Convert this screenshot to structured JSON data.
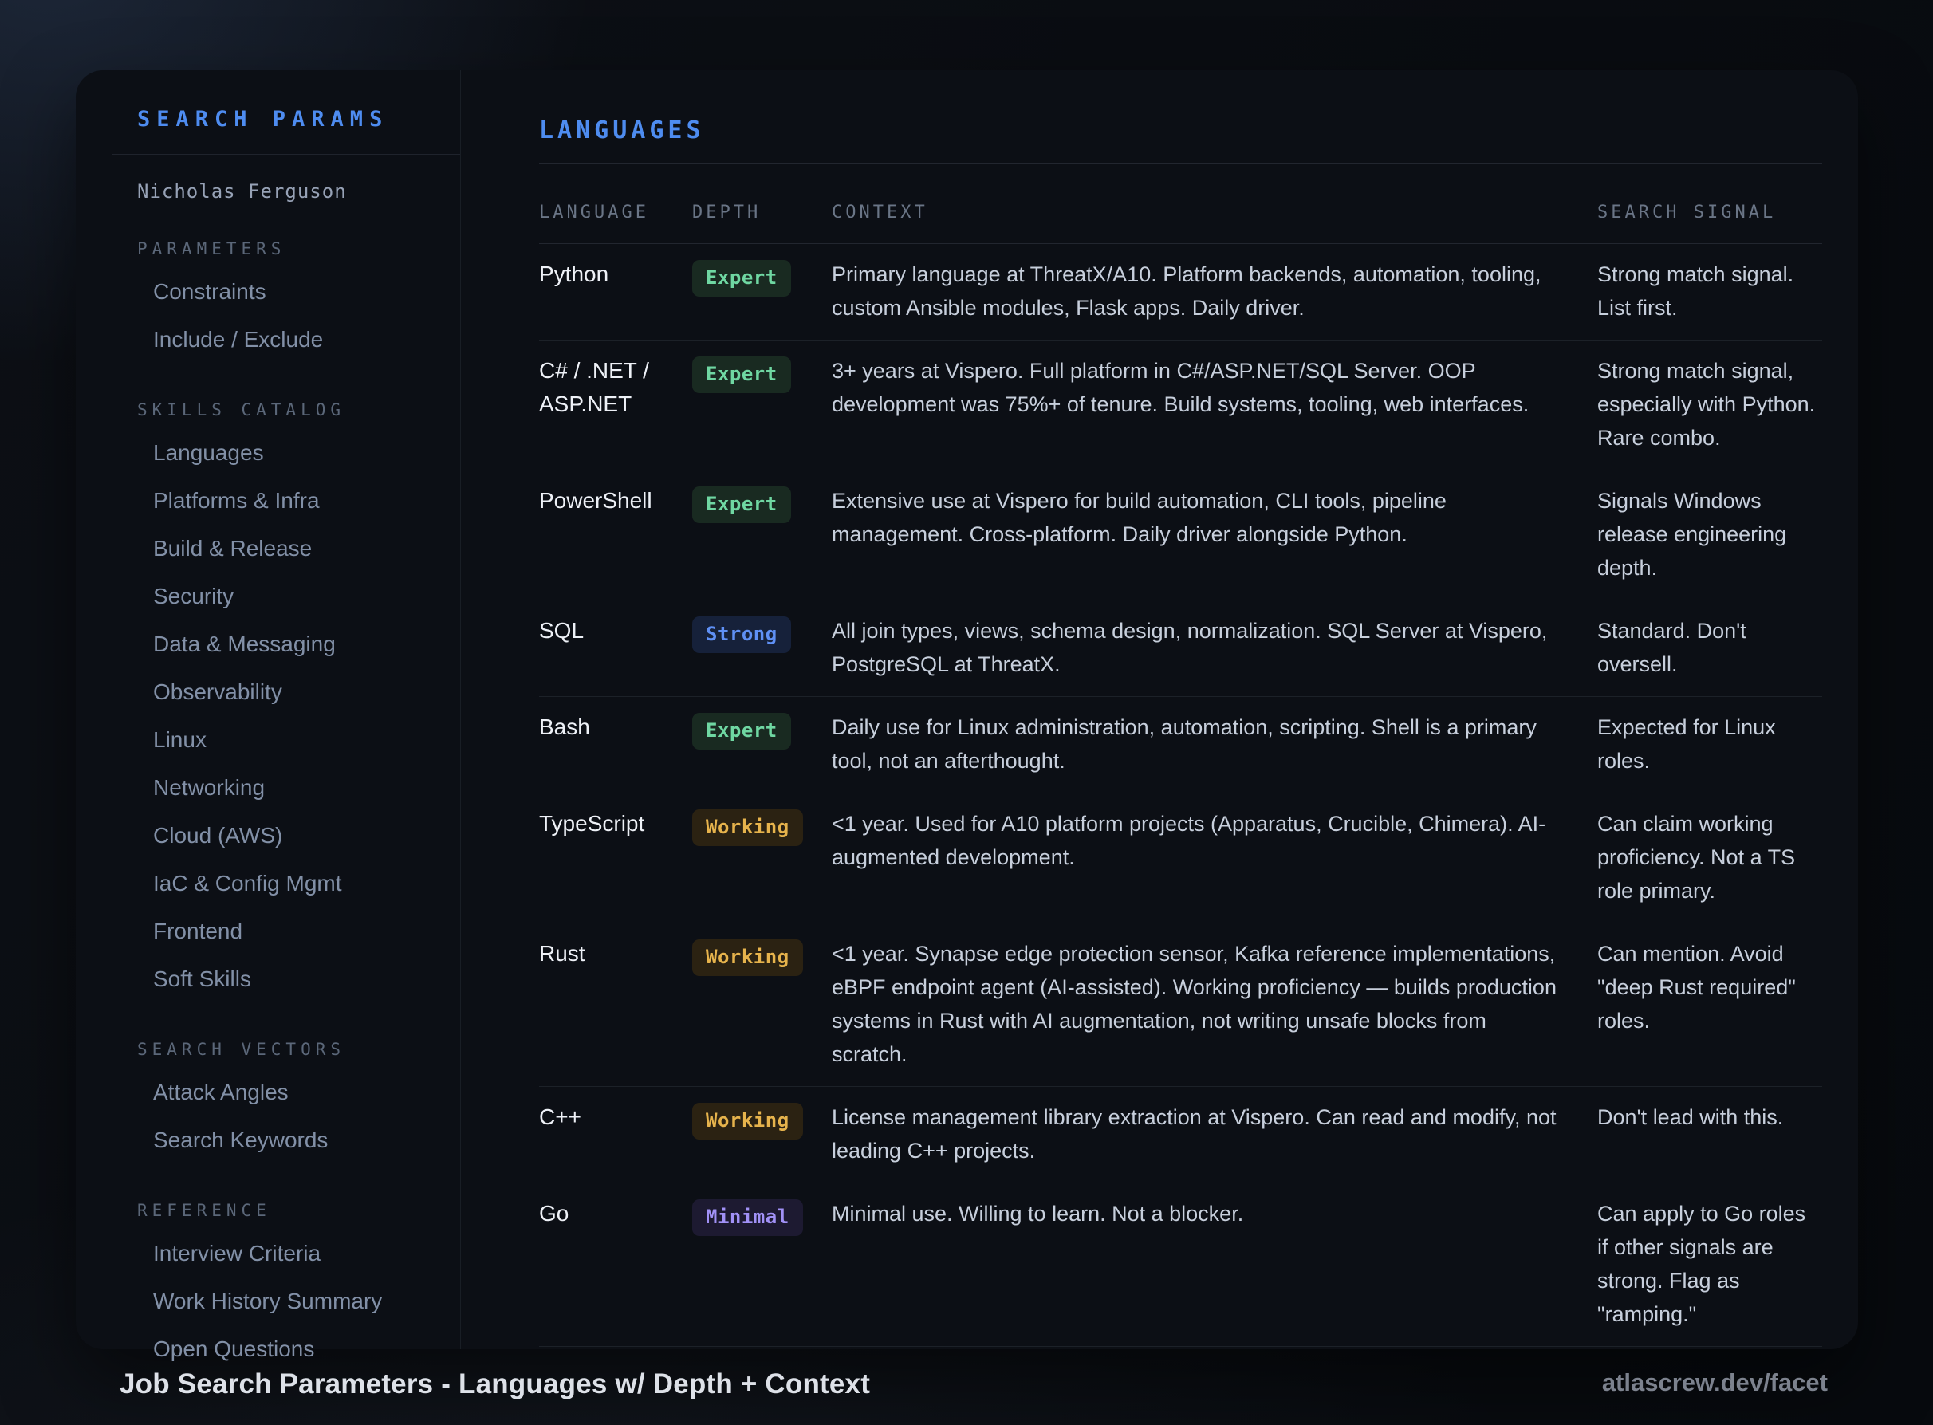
{
  "sidebar": {
    "title": "SEARCH PARAMS",
    "person": "Nicholas Ferguson",
    "sections": [
      {
        "label": "PARAMETERS",
        "items": [
          "Constraints",
          "Include / Exclude"
        ]
      },
      {
        "label": "SKILLS CATALOG",
        "items": [
          "Languages",
          "Platforms & Infra",
          "Build & Release",
          "Security",
          "Data & Messaging",
          "Observability",
          "Linux",
          "Networking",
          "Cloud (AWS)",
          "IaC & Config Mgmt",
          "Frontend",
          "Soft Skills"
        ]
      },
      {
        "label": "SEARCH VECTORS",
        "items": [
          "Attack Angles",
          "Search Keywords"
        ]
      },
      {
        "label": "REFERENCE",
        "items": [
          "Interview Criteria",
          "Work History Summary",
          "Open Questions"
        ]
      }
    ]
  },
  "main": {
    "title": "LANGUAGES",
    "table": {
      "columns": [
        "LANGUAGE",
        "DEPTH",
        "CONTEXT",
        "SEARCH SIGNAL"
      ],
      "rows": [
        {
          "language": "Python",
          "depth": "Expert",
          "level": "expert",
          "context": "Primary language at ThreatX/A10. Platform backends, automation, tooling, custom Ansible modules, Flask apps. Daily driver.",
          "signal": "Strong match signal. List first."
        },
        {
          "language": "C# / .NET / ASP.NET",
          "depth": "Expert",
          "level": "expert",
          "context": "3+ years at Vispero. Full platform in C#/ASP.NET/SQL Server. OOP development was 75%+ of tenure. Build systems, tooling, web interfaces.",
          "signal": "Strong match signal, especially with Python. Rare combo."
        },
        {
          "language": "PowerShell",
          "depth": "Expert",
          "level": "expert",
          "context": "Extensive use at Vispero for build automation, CLI tools, pipeline management. Cross-platform. Daily driver alongside Python.",
          "signal": "Signals Windows release engineering depth."
        },
        {
          "language": "SQL",
          "depth": "Strong",
          "level": "strong",
          "context": "All join types, views, schema design, normalization. SQL Server at Vispero, PostgreSQL at ThreatX.",
          "signal": "Standard. Don't oversell."
        },
        {
          "language": "Bash",
          "depth": "Expert",
          "level": "expert",
          "context": "Daily use for Linux administration, automation, scripting. Shell is a primary tool, not an afterthought.",
          "signal": "Expected for Linux roles."
        },
        {
          "language": "TypeScript",
          "depth": "Working",
          "level": "working",
          "context": "<1 year. Used for A10 platform projects (Apparatus, Crucible, Chimera). AI-augmented development.",
          "signal": "Can claim working proficiency. Not a TS role primary."
        },
        {
          "language": "Rust",
          "depth": "Working",
          "level": "working",
          "context": "<1 year. Synapse edge protection sensor, Kafka reference implementations, eBPF endpoint agent (AI-assisted). Working proficiency — builds production systems in Rust with AI augmentation, not writing unsafe blocks from scratch.",
          "signal": "Can mention. Avoid \"deep Rust required\" roles."
        },
        {
          "language": "C++",
          "depth": "Working",
          "level": "working",
          "context": "License management library extraction at Vispero. Can read and modify, not leading C++ projects.",
          "signal": "Don't lead with this."
        },
        {
          "language": "Go",
          "depth": "Minimal",
          "level": "minimal",
          "context": "Minimal use. Willing to learn. Not a blocker.",
          "signal": "Can apply to Go roles if other signals are strong. Flag as \"ramping.\""
        }
      ]
    }
  },
  "footer": {
    "title": "Job Search Parameters - Languages w/ Depth + Context",
    "watermark": "atlascrew.dev/facet"
  },
  "colors": {
    "accent": "#4e8cf0",
    "panel_background": "#0c0f15",
    "badges": {
      "expert": {
        "text": "#6fd7a2",
        "bg": "#192a21"
      },
      "strong": {
        "text": "#5f90f5",
        "bg": "#16213a"
      },
      "working": {
        "text": "#e6b34c",
        "bg": "#2b2212"
      },
      "minimal": {
        "text": "#a191f6",
        "bg": "#1d1a31"
      }
    }
  }
}
